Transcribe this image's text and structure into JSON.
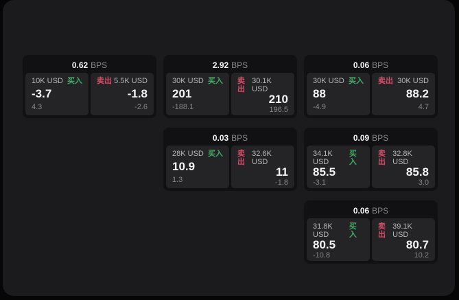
{
  "labels": {
    "bps_unit": "BPS",
    "buy": "买入",
    "sell": "卖出"
  },
  "colors": {
    "page_background": "#060606",
    "window_background": "#1b1b1d",
    "card_background": "#111113",
    "panel_background": "#242427",
    "buy_accent": "#42a963",
    "sell_accent": "#d44d66"
  },
  "cards": [
    {
      "bps": "0.62",
      "buy": {
        "notional": "10K USD",
        "price": "-3.7",
        "delta": "4.3"
      },
      "sell": {
        "notional": "5.5K USD",
        "price": "-1.8",
        "delta": "-2.6"
      }
    },
    {
      "bps": "2.92",
      "buy": {
        "notional": "30K USD",
        "price": "201",
        "delta": "-188.1"
      },
      "sell": {
        "notional": "30.1K USD",
        "price": "210",
        "delta": "196.5"
      }
    },
    {
      "bps": "0.06",
      "buy": {
        "notional": "30K USD",
        "price": "88",
        "delta": "-4.9"
      },
      "sell": {
        "notional": "30K USD",
        "price": "88.2",
        "delta": "4.7"
      }
    },
    {
      "bps": "0.03",
      "buy": {
        "notional": "28K USD",
        "price": "10.9",
        "delta": "1.3"
      },
      "sell": {
        "notional": "32.6K USD",
        "price": "11",
        "delta": "-1.8"
      }
    },
    {
      "bps": "0.09",
      "buy": {
        "notional": "34.1K USD",
        "price": "85.5",
        "delta": "-3.1"
      },
      "sell": {
        "notional": "32.8K USD",
        "price": "85.8",
        "delta": "3.0"
      }
    },
    {
      "bps": "0.06",
      "buy": {
        "notional": "31.8K USD",
        "price": "80.5",
        "delta": "-10.8"
      },
      "sell": {
        "notional": "39.1K USD",
        "price": "80.7",
        "delta": "10.2"
      }
    }
  ]
}
